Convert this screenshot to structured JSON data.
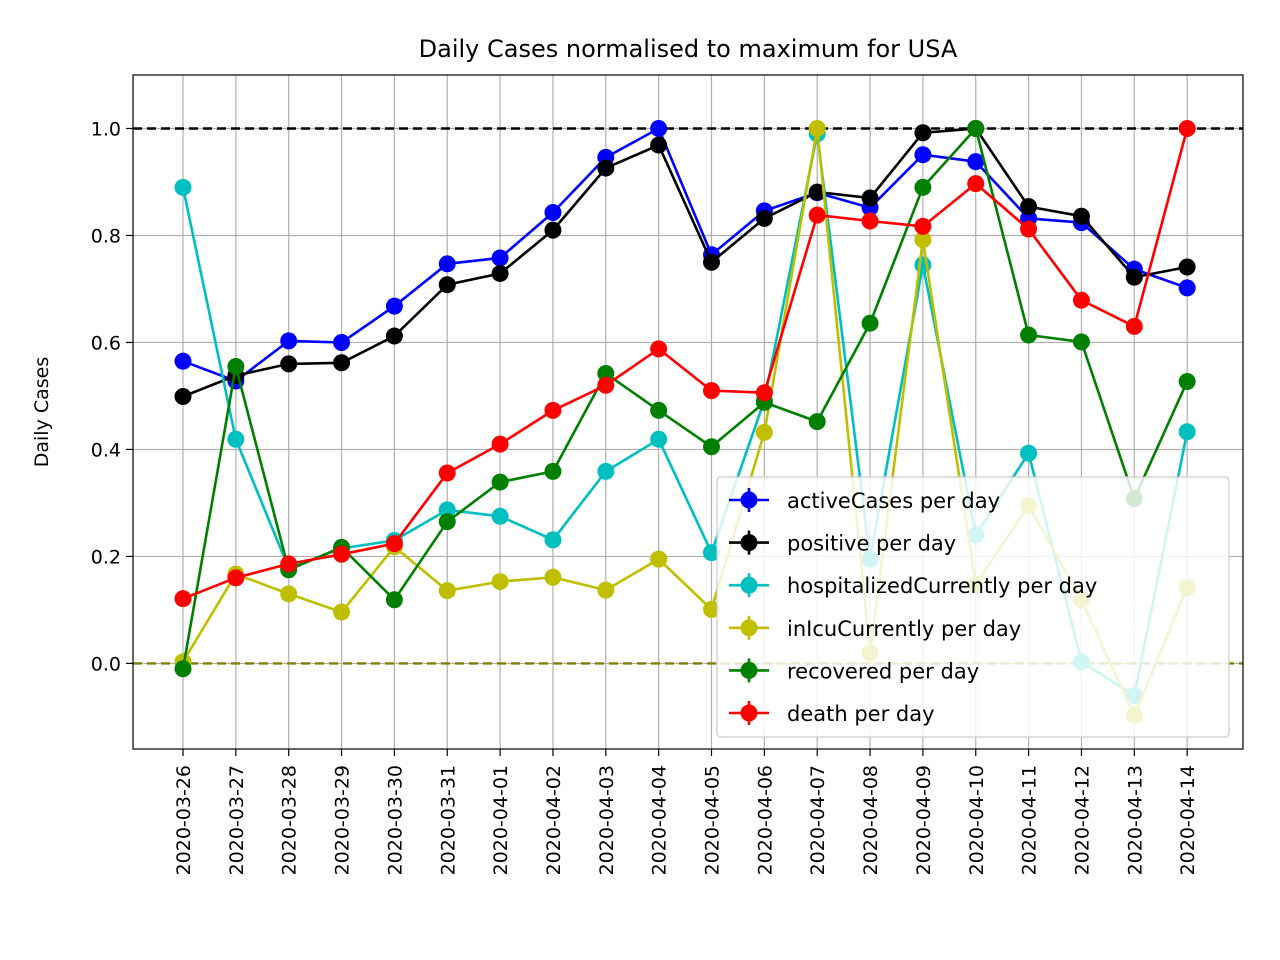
{
  "chart_data": {
    "type": "line",
    "title": "Daily Cases normalised to maximum for USA",
    "xlabel": "",
    "ylabel": "Daily Cases",
    "ylim": [
      -0.16,
      1.1
    ],
    "yticks": [
      "0.0",
      "0.2",
      "0.4",
      "0.6",
      "0.8",
      "1.0"
    ],
    "grid": true,
    "legend_position": "lower-right",
    "reference_lines": [
      {
        "y": 1.0,
        "color": "#000000",
        "style": "dashed"
      },
      {
        "y": 0.0,
        "color": "#808000",
        "style": "dashed"
      }
    ],
    "categories": [
      "2020-03-26",
      "2020-03-27",
      "2020-03-28",
      "2020-03-29",
      "2020-03-30",
      "2020-03-31",
      "2020-04-01",
      "2020-04-02",
      "2020-04-03",
      "2020-04-04",
      "2020-04-05",
      "2020-04-06",
      "2020-04-07",
      "2020-04-08",
      "2020-04-09",
      "2020-04-10",
      "2020-04-11",
      "2020-04-12",
      "2020-04-13",
      "2020-04-14"
    ],
    "series": [
      {
        "name": "activeCases per day",
        "color": "#0000ff",
        "values": [
          0.565,
          0.528,
          0.603,
          0.6,
          0.668,
          0.747,
          0.758,
          0.843,
          0.946,
          1.0,
          0.764,
          0.846,
          0.88,
          0.852,
          0.951,
          0.938,
          0.832,
          0.824,
          0.737,
          0.702
        ]
      },
      {
        "name": "positive per day",
        "color": "#000000",
        "values": [
          0.499,
          0.538,
          0.56,
          0.562,
          0.612,
          0.708,
          0.729,
          0.81,
          0.926,
          0.969,
          0.75,
          0.832,
          0.881,
          0.87,
          0.992,
          1.0,
          0.854,
          0.836,
          0.722,
          0.741
        ]
      },
      {
        "name": "hospitalizedCurrently per day",
        "color": "#00bfbf",
        "values": [
          0.89,
          0.419,
          0.178,
          0.215,
          0.23,
          0.287,
          0.275,
          0.231,
          0.359,
          0.419,
          0.207,
          0.492,
          0.99,
          0.195,
          0.745,
          0.24,
          0.393,
          0.003,
          -0.06,
          0.433
        ]
      },
      {
        "name": "inIcuCurrently per day",
        "color": "#bfbf00",
        "values": [
          0.003,
          0.167,
          0.13,
          0.096,
          0.218,
          0.136,
          0.153,
          0.161,
          0.137,
          0.195,
          0.101,
          0.432,
          1.0,
          0.02,
          0.792,
          0.148,
          0.295,
          0.119,
          -0.097,
          0.142
        ]
      },
      {
        "name": "recovered per day",
        "color": "#008000",
        "values": [
          -0.01,
          0.555,
          0.175,
          0.217,
          0.119,
          0.265,
          0.339,
          0.359,
          0.542,
          0.473,
          0.405,
          0.488,
          0.452,
          0.636,
          0.89,
          1.0,
          0.614,
          0.601,
          0.308,
          0.527
        ]
      },
      {
        "name": "death per day",
        "color": "#ff0000",
        "values": [
          0.121,
          0.16,
          0.186,
          0.204,
          0.224,
          0.356,
          0.41,
          0.473,
          0.52,
          0.588,
          0.51,
          0.506,
          0.838,
          0.827,
          0.817,
          0.897,
          0.812,
          0.679,
          0.63,
          1.0
        ]
      }
    ]
  }
}
